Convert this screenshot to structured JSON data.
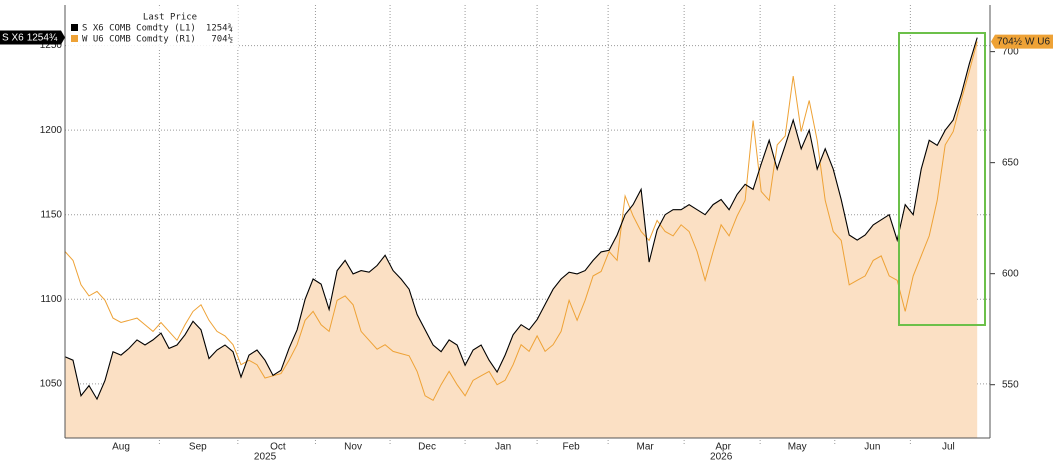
{
  "chart_data": {
    "type": "line",
    "legend_title": "Last Price",
    "legend": "upper left",
    "grid": true,
    "xlim": [
      0,
      115.6
    ],
    "xticks": [
      {
        "value": 7,
        "label": "Aug"
      },
      {
        "value": 16.6,
        "label": "Sep"
      },
      {
        "value": 26.6,
        "label": "Oct"
      },
      {
        "value": 36,
        "label": "Nov"
      },
      {
        "value": 45.25,
        "label": "Dec"
      },
      {
        "value": 54.75,
        "label": "Jan"
      },
      {
        "value": 63.25,
        "label": "Feb"
      },
      {
        "value": 72.5,
        "label": "Mar"
      },
      {
        "value": 82.25,
        "label": "Apr"
      },
      {
        "value": 91.5,
        "label": "May"
      },
      {
        "value": 100.9,
        "label": "Jun"
      },
      {
        "value": 110.4,
        "label": "Jul"
      }
    ],
    "year_labels": [
      {
        "value": 25,
        "label": "2025"
      },
      {
        "value": 82,
        "label": "2026"
      }
    ],
    "ylim": [
      1018,
      1274
    ],
    "yticks": [
      1050,
      1100,
      1150,
      1200,
      1250
    ],
    "y2lim": [
      526,
      721
    ],
    "y2ticks": [
      550,
      600,
      650,
      700
    ],
    "series": [
      {
        "name": "S X6 COMB Comdty (L1)",
        "tag": "S X6",
        "color": "#000000",
        "area_color": "#fbe0c4",
        "last_value_label": "1254¾",
        "values": [
          1066,
          1064,
          1043,
          1049,
          1041,
          1052,
          1069,
          1067,
          1071,
          1076,
          1073,
          1076,
          1080,
          1071,
          1073,
          1079,
          1087,
          1082,
          1065,
          1070,
          1073,
          1069,
          1054,
          1067,
          1070,
          1064,
          1055,
          1058,
          1071,
          1082,
          1100,
          1112,
          1109,
          1094,
          1117,
          1123,
          1115,
          1117,
          1116,
          1120,
          1126,
          1117,
          1112,
          1106,
          1091,
          1082,
          1073,
          1069,
          1076,
          1073,
          1061,
          1070,
          1073,
          1064,
          1057,
          1067,
          1079,
          1085,
          1082,
          1088,
          1097,
          1106,
          1112,
          1116,
          1115,
          1117,
          1123,
          1128,
          1129,
          1138,
          1150,
          1156,
          1165,
          1122,
          1141,
          1150,
          1153,
          1153,
          1156,
          1153,
          1150,
          1156,
          1159,
          1153,
          1162,
          1168,
          1165,
          1180,
          1194,
          1177,
          1191,
          1206,
          1189,
          1200,
          1177,
          1189,
          1177,
          1159,
          1138,
          1135,
          1138,
          1144,
          1147,
          1150,
          1135,
          1156,
          1150,
          1177,
          1194,
          1191,
          1200,
          1206,
          1221,
          1239,
          1254.75
        ]
      },
      {
        "name": "W U6 COMB Comdty (R1)",
        "tag": "W U6",
        "color": "#eea236",
        "axis": "y2",
        "last_value_label": "704½",
        "values": [
          610,
          606,
          595,
          590,
          592,
          588,
          580,
          578,
          579,
          580,
          577,
          574,
          578,
          574,
          570,
          577,
          583,
          586,
          579,
          574,
          572,
          568,
          559,
          561,
          559,
          553,
          554,
          555,
          561,
          568,
          579,
          583,
          577,
          574,
          588,
          590,
          586,
          574,
          570,
          566,
          568,
          565,
          564,
          563,
          556,
          545,
          543,
          550,
          556,
          550,
          545,
          552,
          554,
          556,
          550,
          552,
          559,
          568,
          565,
          572,
          565,
          568,
          574,
          588,
          579,
          588,
          599,
          601,
          610,
          606,
          635,
          626,
          619,
          615,
          624,
          619,
          617,
          622,
          619,
          610,
          597,
          610,
          622,
          617,
          626,
          633,
          669,
          637,
          633,
          658,
          662,
          689,
          664,
          678,
          660,
          633,
          619,
          615,
          595,
          597,
          599,
          606,
          608,
          599,
          597,
          583,
          599,
          608,
          617,
          633,
          658,
          664,
          678,
          691,
          704.5
        ]
      }
    ]
  }
}
